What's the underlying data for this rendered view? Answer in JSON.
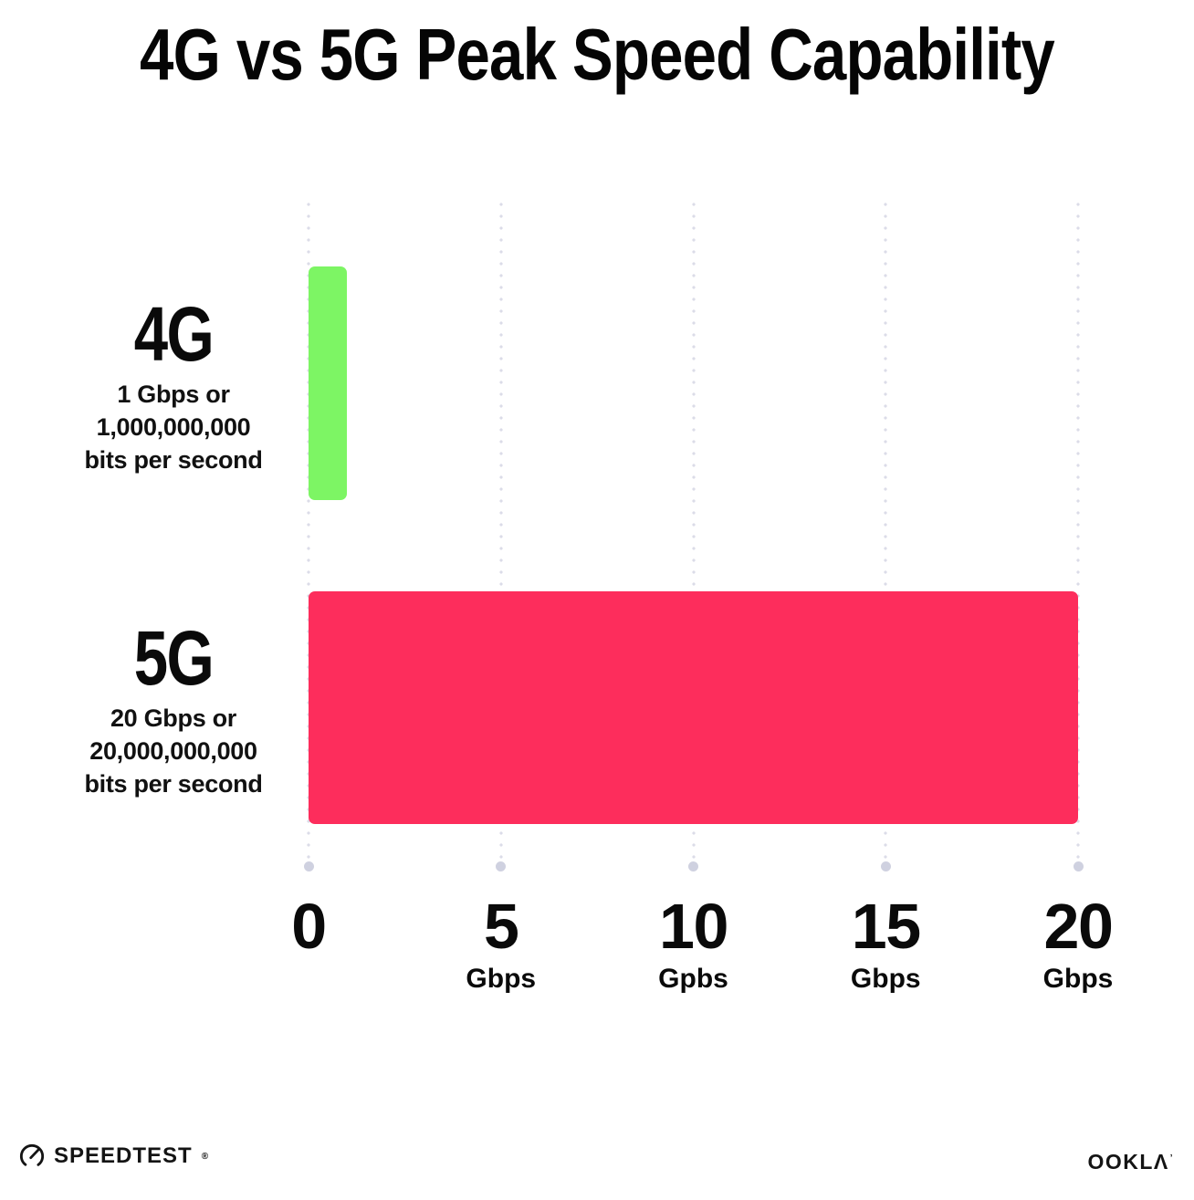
{
  "chart_data": {
    "type": "bar",
    "orientation": "horizontal",
    "title": "4G vs 5G Peak Speed Capability",
    "categories": [
      "4G",
      "5G"
    ],
    "values": [
      1,
      20
    ],
    "value_unit": "Gbps",
    "xlim": [
      0,
      20
    ],
    "x_ticks": [
      {
        "value": 0,
        "unit": ""
      },
      {
        "value": 5,
        "unit": "Gbps"
      },
      {
        "value": 10,
        "unit": "Gpbs"
      },
      {
        "value": 15,
        "unit": "Gbps"
      },
      {
        "value": 20,
        "unit": "Gbps"
      }
    ],
    "grid": "vertical dotted gridlines with round end dots",
    "legend": "none",
    "bar_colors": [
      "#7DF564",
      "#FD2D5C"
    ]
  },
  "rows": [
    {
      "label": "4G",
      "desc": [
        "1 Gbps or",
        "1,000,000,000",
        "bits per second"
      ],
      "value_gbps": 1
    },
    {
      "label": "5G",
      "desc": [
        "20 Gbps or",
        "20,000,000,000",
        "bits per second"
      ],
      "value_gbps": 20
    }
  ],
  "footer": {
    "speedtest_label": "SPEEDTEST",
    "speedtest_mark": "®",
    "ookla_label": "OOKLΛ",
    "ookla_mark": "’"
  },
  "colors": {
    "bar_4g": "#7DF564",
    "bar_5g": "#FD2D5C",
    "gridline_dot": "#DBDCE8",
    "gridline_end_dot": "#CFD1E0",
    "text": "#0B0B0B",
    "background": "#FFFFFF"
  }
}
